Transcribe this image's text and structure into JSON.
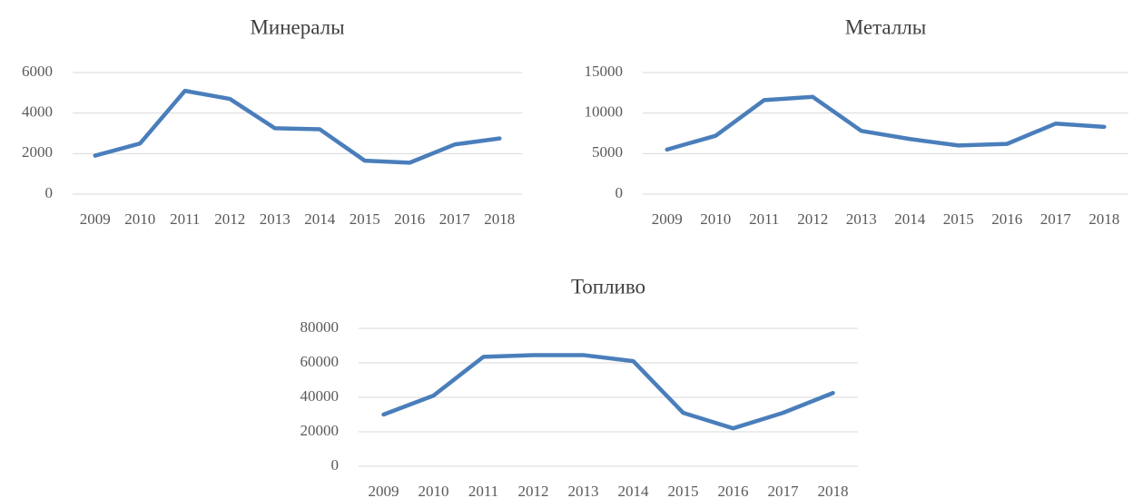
{
  "chart_data": [
    {
      "type": "line",
      "title": "Минералы",
      "categories": [
        "2009",
        "2010",
        "2011",
        "2012",
        "2013",
        "2014",
        "2015",
        "2016",
        "2017",
        "2018"
      ],
      "series": [
        {
          "name": "Минералы",
          "color": "#4a7ebb",
          "values": [
            1900,
            2500,
            5100,
            4700,
            3250,
            3200,
            1650,
            1550,
            2450,
            2750
          ]
        }
      ],
      "ylim": [
        0,
        6000
      ],
      "yticks": [
        0,
        2000,
        4000,
        6000
      ],
      "grid": true
    },
    {
      "type": "line",
      "title": "Металлы",
      "categories": [
        "2009",
        "2010",
        "2011",
        "2012",
        "2013",
        "2014",
        "2015",
        "2016",
        "2017",
        "2018"
      ],
      "series": [
        {
          "name": "Металлы",
          "color": "#4a7ebb",
          "values": [
            5500,
            7200,
            11600,
            12000,
            7800,
            6800,
            6000,
            6200,
            8700,
            8300
          ]
        }
      ],
      "ylim": [
        0,
        15000
      ],
      "yticks": [
        0,
        5000,
        10000,
        15000
      ],
      "grid": true
    },
    {
      "type": "line",
      "title": "Топливо",
      "categories": [
        "2009",
        "2010",
        "2011",
        "2012",
        "2013",
        "2014",
        "2015",
        "2016",
        "2017",
        "2018"
      ],
      "series": [
        {
          "name": "Топливо",
          "color": "#4a7ebb",
          "values": [
            30000,
            41000,
            63500,
            64500,
            64500,
            61000,
            31000,
            22000,
            31000,
            42500
          ]
        }
      ],
      "ylim": [
        0,
        80000
      ],
      "yticks": [
        0,
        20000,
        40000,
        60000,
        80000
      ],
      "grid": true
    }
  ]
}
